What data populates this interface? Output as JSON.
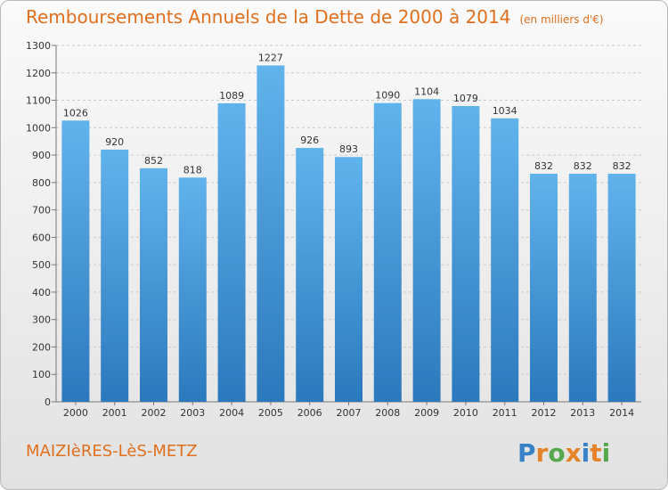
{
  "header": {
    "title": "Remboursements Annuels de la Dette de 2000 à 2014",
    "unit": "(en milliers d'€)"
  },
  "footer": {
    "city": "MAIZIèRES-LèS-METZ",
    "logo_text": "Proxiti"
  },
  "colors": {
    "title": "#e06f1e",
    "bar_top": "#61b3ec",
    "bar_bottom": "#2b79bd"
  },
  "chart_data": {
    "type": "bar",
    "title": "Remboursements Annuels de la Dette de 2000 à 2014",
    "xlabel": "",
    "ylabel": "",
    "categories": [
      "2000",
      "2001",
      "2002",
      "2003",
      "2004",
      "2005",
      "2006",
      "2007",
      "2008",
      "2009",
      "2010",
      "2011",
      "2012",
      "2013",
      "2014"
    ],
    "values": [
      1026,
      920,
      852,
      818,
      1089,
      1227,
      926,
      893,
      1090,
      1104,
      1079,
      1034,
      832,
      832,
      832
    ],
    "ylim": [
      0,
      1300
    ],
    "yticks": [
      0,
      100,
      200,
      300,
      400,
      500,
      600,
      700,
      800,
      900,
      1000,
      1100,
      1200,
      1300
    ],
    "grid": true,
    "legend": "none"
  }
}
